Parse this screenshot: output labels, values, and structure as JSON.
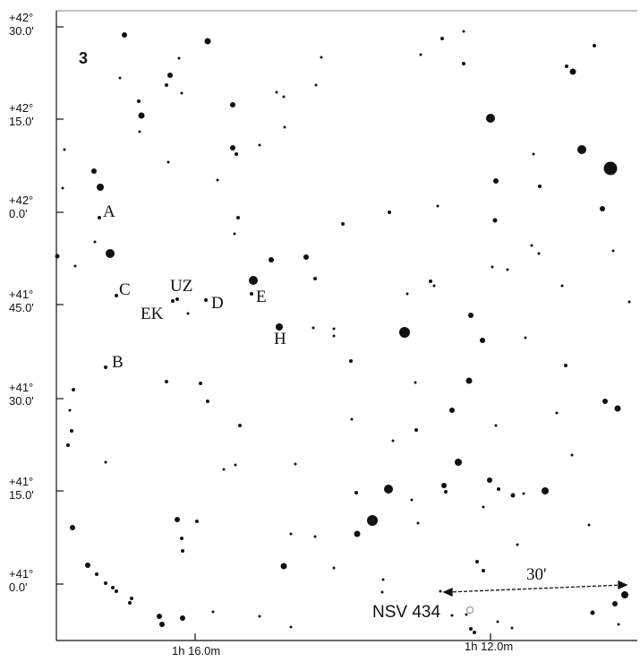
{
  "panel_number": "3",
  "ra_labels": [
    "1h 16.0m",
    "1h 12.0m"
  ],
  "dec_labels": [
    {
      "deg": "+42°",
      "min": "30.0'"
    },
    {
      "deg": "+42°",
      "min": "15.0'"
    },
    {
      "deg": "+42°",
      "min": "0.0'"
    },
    {
      "deg": "+41°",
      "min": "45.0'"
    },
    {
      "deg": "+41°",
      "min": "30.0'"
    },
    {
      "deg": "+41°",
      "min": "15.0'"
    },
    {
      "deg": "+41°",
      "min": "0.0'"
    }
  ],
  "comparison_labels": [
    "A",
    "C",
    "UZ",
    "EK",
    "D",
    "E",
    "H",
    "B"
  ],
  "scale_label": "30'",
  "nsv_label": "NSV 434",
  "colors": {
    "ink": "#111111",
    "background": "#ffffff"
  }
}
